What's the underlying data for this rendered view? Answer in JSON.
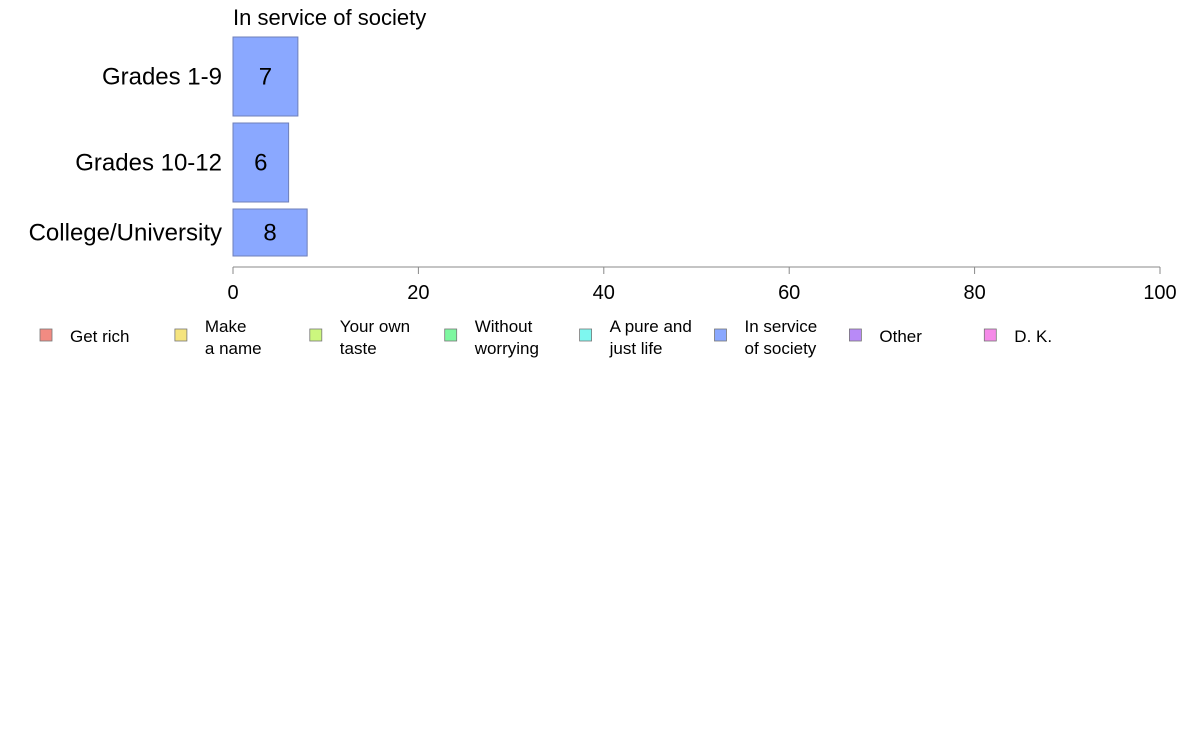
{
  "chart_data": {
    "type": "bar",
    "orientation": "horizontal",
    "title": "In service of society",
    "categories": [
      "Grades 1-9",
      "Grades 10-12",
      "College/University"
    ],
    "series": [
      {
        "name": "In service of society",
        "values": [
          7,
          6,
          8
        ]
      }
    ],
    "data_labels": [
      "7",
      "6",
      "8"
    ],
    "xlim": [
      0,
      100
    ],
    "x_ticks": [
      0,
      20,
      40,
      60,
      80,
      100
    ],
    "grid": false,
    "bar_color": "#8aa8ff",
    "bar_border_color": "#6f7fb8",
    "legend_position": "bottom",
    "legend": [
      {
        "label": [
          "Get rich"
        ],
        "color": "#f28b82"
      },
      {
        "label": [
          "Make",
          "a name"
        ],
        "color": "#f5e47e"
      },
      {
        "label": [
          "Your own",
          "taste"
        ],
        "color": "#ccf77e"
      },
      {
        "label": [
          "Without",
          "worrying"
        ],
        "color": "#7ef7a0"
      },
      {
        "label": [
          "A pure and",
          "just life"
        ],
        "color": "#7ef7ef"
      },
      {
        "label": [
          "In service",
          "of society"
        ],
        "color": "#8aa8ff"
      },
      {
        "label": [
          "Other"
        ],
        "color": "#b88af7"
      },
      {
        "label": [
          "D. K."
        ],
        "color": "#f58ae8"
      }
    ]
  }
}
